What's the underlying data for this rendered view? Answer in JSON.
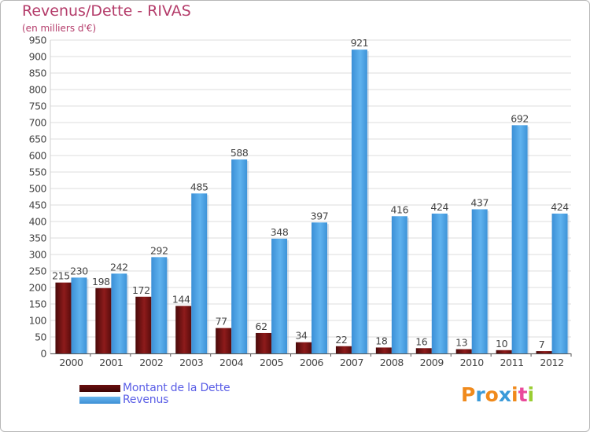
{
  "chart_data": {
    "type": "bar",
    "title": "Revenus/Dette - RIVAS",
    "subtitle": "(en milliers d'€)",
    "categories": [
      "2000",
      "2001",
      "2002",
      "2003",
      "2004",
      "2005",
      "2006",
      "2007",
      "2008",
      "2009",
      "2010",
      "2011",
      "2012"
    ],
    "series": [
      {
        "name": "Montant de la Dette",
        "color": "#8b1a1a",
        "values": [
          215,
          198,
          172,
          144,
          77,
          62,
          34,
          22,
          18,
          16,
          13,
          10,
          7
        ]
      },
      {
        "name": "Revenus",
        "color": "#4aa3e6",
        "values": [
          230,
          242,
          292,
          485,
          588,
          348,
          397,
          921,
          416,
          424,
          437,
          692,
          424
        ]
      }
    ],
    "ylim": [
      0,
      950
    ],
    "yticks": [
      0,
      50,
      100,
      150,
      200,
      250,
      300,
      350,
      400,
      450,
      500,
      550,
      600,
      650,
      700,
      750,
      800,
      850,
      900,
      950
    ],
    "grid": true,
    "legend_position": "bottom-left"
  },
  "logo": {
    "text": "Proxiti",
    "letter_colors": [
      "#f08a1c",
      "#3a9ad9",
      "#f08a1c",
      "#3a9ad9",
      "#f08a1c",
      "#e94b9b",
      "#9acd32"
    ]
  }
}
